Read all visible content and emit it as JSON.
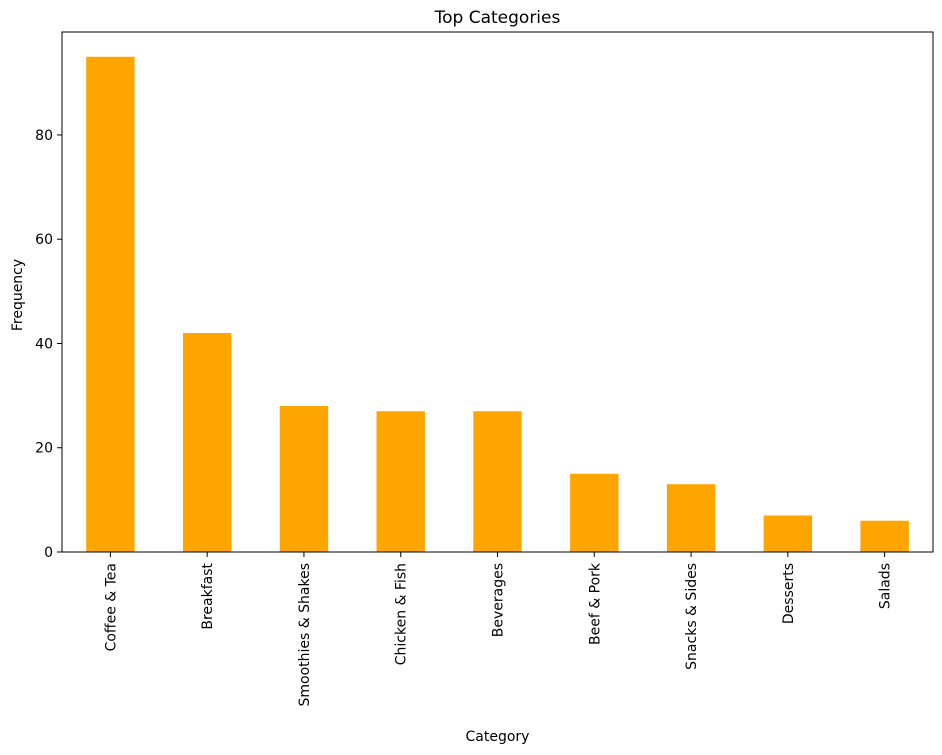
{
  "chart_data": {
    "type": "bar",
    "title": "Top Categories",
    "xlabel": "Category",
    "ylabel": "Frequency",
    "categories": [
      "Coffee & Tea",
      "Breakfast",
      "Smoothies & Shakes",
      "Chicken & Fish",
      "Beverages",
      "Beef & Pork",
      "Snacks & Sides",
      "Desserts",
      "Salads"
    ],
    "values": [
      95,
      42,
      28,
      27,
      27,
      15,
      13,
      7,
      6
    ],
    "ylim": [
      0,
      99.75
    ],
    "yticks": [
      0,
      20,
      40,
      60,
      80
    ],
    "bar_color": "#ffa500",
    "grid": false,
    "legend": "none"
  }
}
